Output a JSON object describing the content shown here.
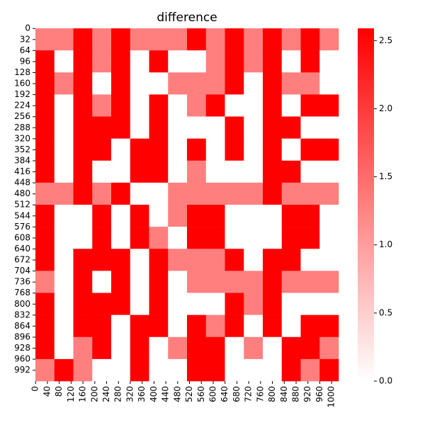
{
  "chart_data": {
    "type": "heatmap",
    "title": "difference",
    "cmap": [
      "#ffffff",
      "#ff0000"
    ],
    "clim": [
      0,
      2.59
    ],
    "cticks": [
      {
        "value": 0,
        "label": "0.0"
      },
      {
        "value": 0.5,
        "label": "0.5"
      },
      {
        "value": 1,
        "label": "1.0"
      },
      {
        "value": 1.5,
        "label": "1.5"
      },
      {
        "value": 2,
        "label": "2.0"
      },
      {
        "value": 2.5,
        "label": "2.5"
      }
    ],
    "xlim": [
      0,
      1024
    ],
    "ylim": [
      0,
      1024
    ],
    "xticks": [
      0,
      40,
      80,
      120,
      160,
      200,
      240,
      280,
      320,
      360,
      400,
      440,
      480,
      520,
      560,
      600,
      640,
      680,
      720,
      760,
      800,
      840,
      880,
      920,
      960,
      1000
    ],
    "yticks": [
      0,
      32,
      64,
      96,
      128,
      160,
      192,
      224,
      256,
      288,
      320,
      352,
      384,
      416,
      448,
      480,
      512,
      544,
      576,
      608,
      640,
      672,
      704,
      736,
      768,
      800,
      832,
      864,
      896,
      928,
      960,
      992
    ],
    "values": [
      [
        1.3,
        1.3,
        2.59,
        1.3,
        2.59,
        1.3,
        1.3,
        1.3,
        2.59,
        1.3,
        2.59,
        1.3,
        2.59,
        1.3,
        2.59,
        1.3
      ],
      [
        2.59,
        0,
        2.59,
        1.3,
        2.59,
        0,
        2.59,
        0,
        0,
        1.3,
        2.59,
        1.3,
        2.59,
        0,
        2.59,
        0
      ],
      [
        2.59,
        1.3,
        2.59,
        0,
        2.59,
        0,
        0,
        1.3,
        1.3,
        1.3,
        2.59,
        0,
        2.59,
        1.3,
        1.3,
        0
      ],
      [
        2.59,
        0,
        2.59,
        1.3,
        2.59,
        0,
        2.59,
        0,
        1.3,
        2.59,
        0,
        0,
        2.59,
        0,
        2.59,
        2.59
      ],
      [
        2.59,
        0,
        2.59,
        2.59,
        2.59,
        0,
        2.59,
        0,
        0,
        0,
        2.59,
        0,
        2.59,
        2.59,
        0,
        0
      ],
      [
        2.59,
        0,
        2.59,
        2.59,
        0,
        2.59,
        2.59,
        0,
        2.59,
        0,
        2.59,
        0,
        2.59,
        0,
        2.59,
        2.59
      ],
      [
        2.59,
        0,
        2.59,
        0,
        0,
        2.59,
        2.59,
        0,
        1.3,
        0,
        0,
        0,
        2.59,
        2.59,
        0,
        0
      ],
      [
        1.3,
        1.3,
        2.59,
        1.3,
        2.59,
        0,
        0,
        1.3,
        1.3,
        1.3,
        1.3,
        1.3,
        2.59,
        1.3,
        1.3,
        1.3
      ],
      [
        2.59,
        0,
        0,
        2.59,
        0,
        2.59,
        0,
        1.3,
        2.59,
        2.59,
        0,
        0,
        0,
        2.59,
        2.59,
        0
      ],
      [
        2.59,
        0,
        0,
        2.59,
        0,
        2.59,
        1.3,
        0,
        2.59,
        2.59,
        0,
        0,
        0,
        2.59,
        2.59,
        0
      ],
      [
        2.59,
        0,
        2.59,
        2.59,
        2.59,
        0,
        2.59,
        1.3,
        1.3,
        1.3,
        2.59,
        0,
        2.59,
        2.59,
        0,
        0
      ],
      [
        1.3,
        0,
        2.59,
        0,
        2.59,
        0,
        2.59,
        0,
        1.3,
        1.3,
        1.3,
        1.3,
        2.59,
        1.3,
        1.3,
        1.3
      ],
      [
        2.59,
        0,
        2.59,
        2.59,
        2.59,
        0,
        2.59,
        0,
        0,
        0,
        2.59,
        1.3,
        2.59,
        0,
        0,
        0
      ],
      [
        2.59,
        0,
        2.59,
        2.59,
        0,
        2.59,
        2.59,
        0,
        2.59,
        1.3,
        2.59,
        0,
        2.59,
        0,
        2.59,
        2.59
      ],
      [
        2.59,
        0,
        1.3,
        2.59,
        0,
        2.59,
        0,
        1.3,
        2.59,
        2.59,
        0,
        1.3,
        0,
        2.59,
        2.59,
        1.3
      ],
      [
        1.3,
        2.59,
        1.3,
        0,
        0,
        2.59,
        0,
        0,
        2.59,
        2.59,
        0,
        0,
        0,
        2.59,
        1.3,
        2.59
      ]
    ]
  }
}
